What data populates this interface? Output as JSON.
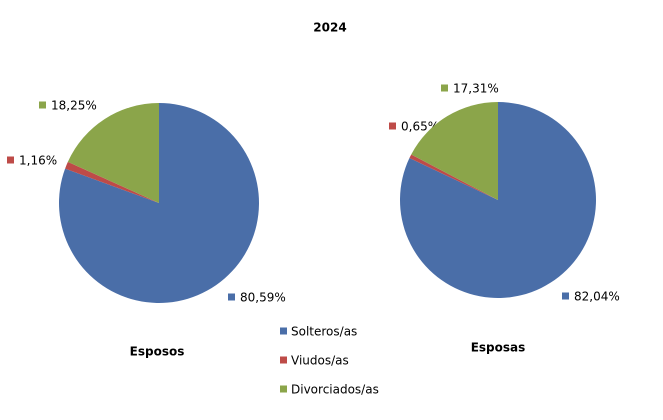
{
  "title": "2024",
  "legend": {
    "categories": [
      "Solteros/as",
      "Viudos/as",
      "Divorciados/as"
    ],
    "colors": [
      "#4a6ea8",
      "#be4b48",
      "#8ba54a"
    ]
  },
  "chart_data": [
    {
      "type": "pie",
      "label": "Esposos",
      "values": [
        80.59,
        1.16,
        18.25
      ],
      "value_labels": [
        "80,59%",
        "1,16%",
        "18,25%"
      ]
    },
    {
      "type": "pie",
      "label": "Esposas",
      "values": [
        82.04,
        0.65,
        17.31
      ],
      "value_labels": [
        "82,04%",
        "0,65%",
        "17,31%"
      ]
    }
  ]
}
